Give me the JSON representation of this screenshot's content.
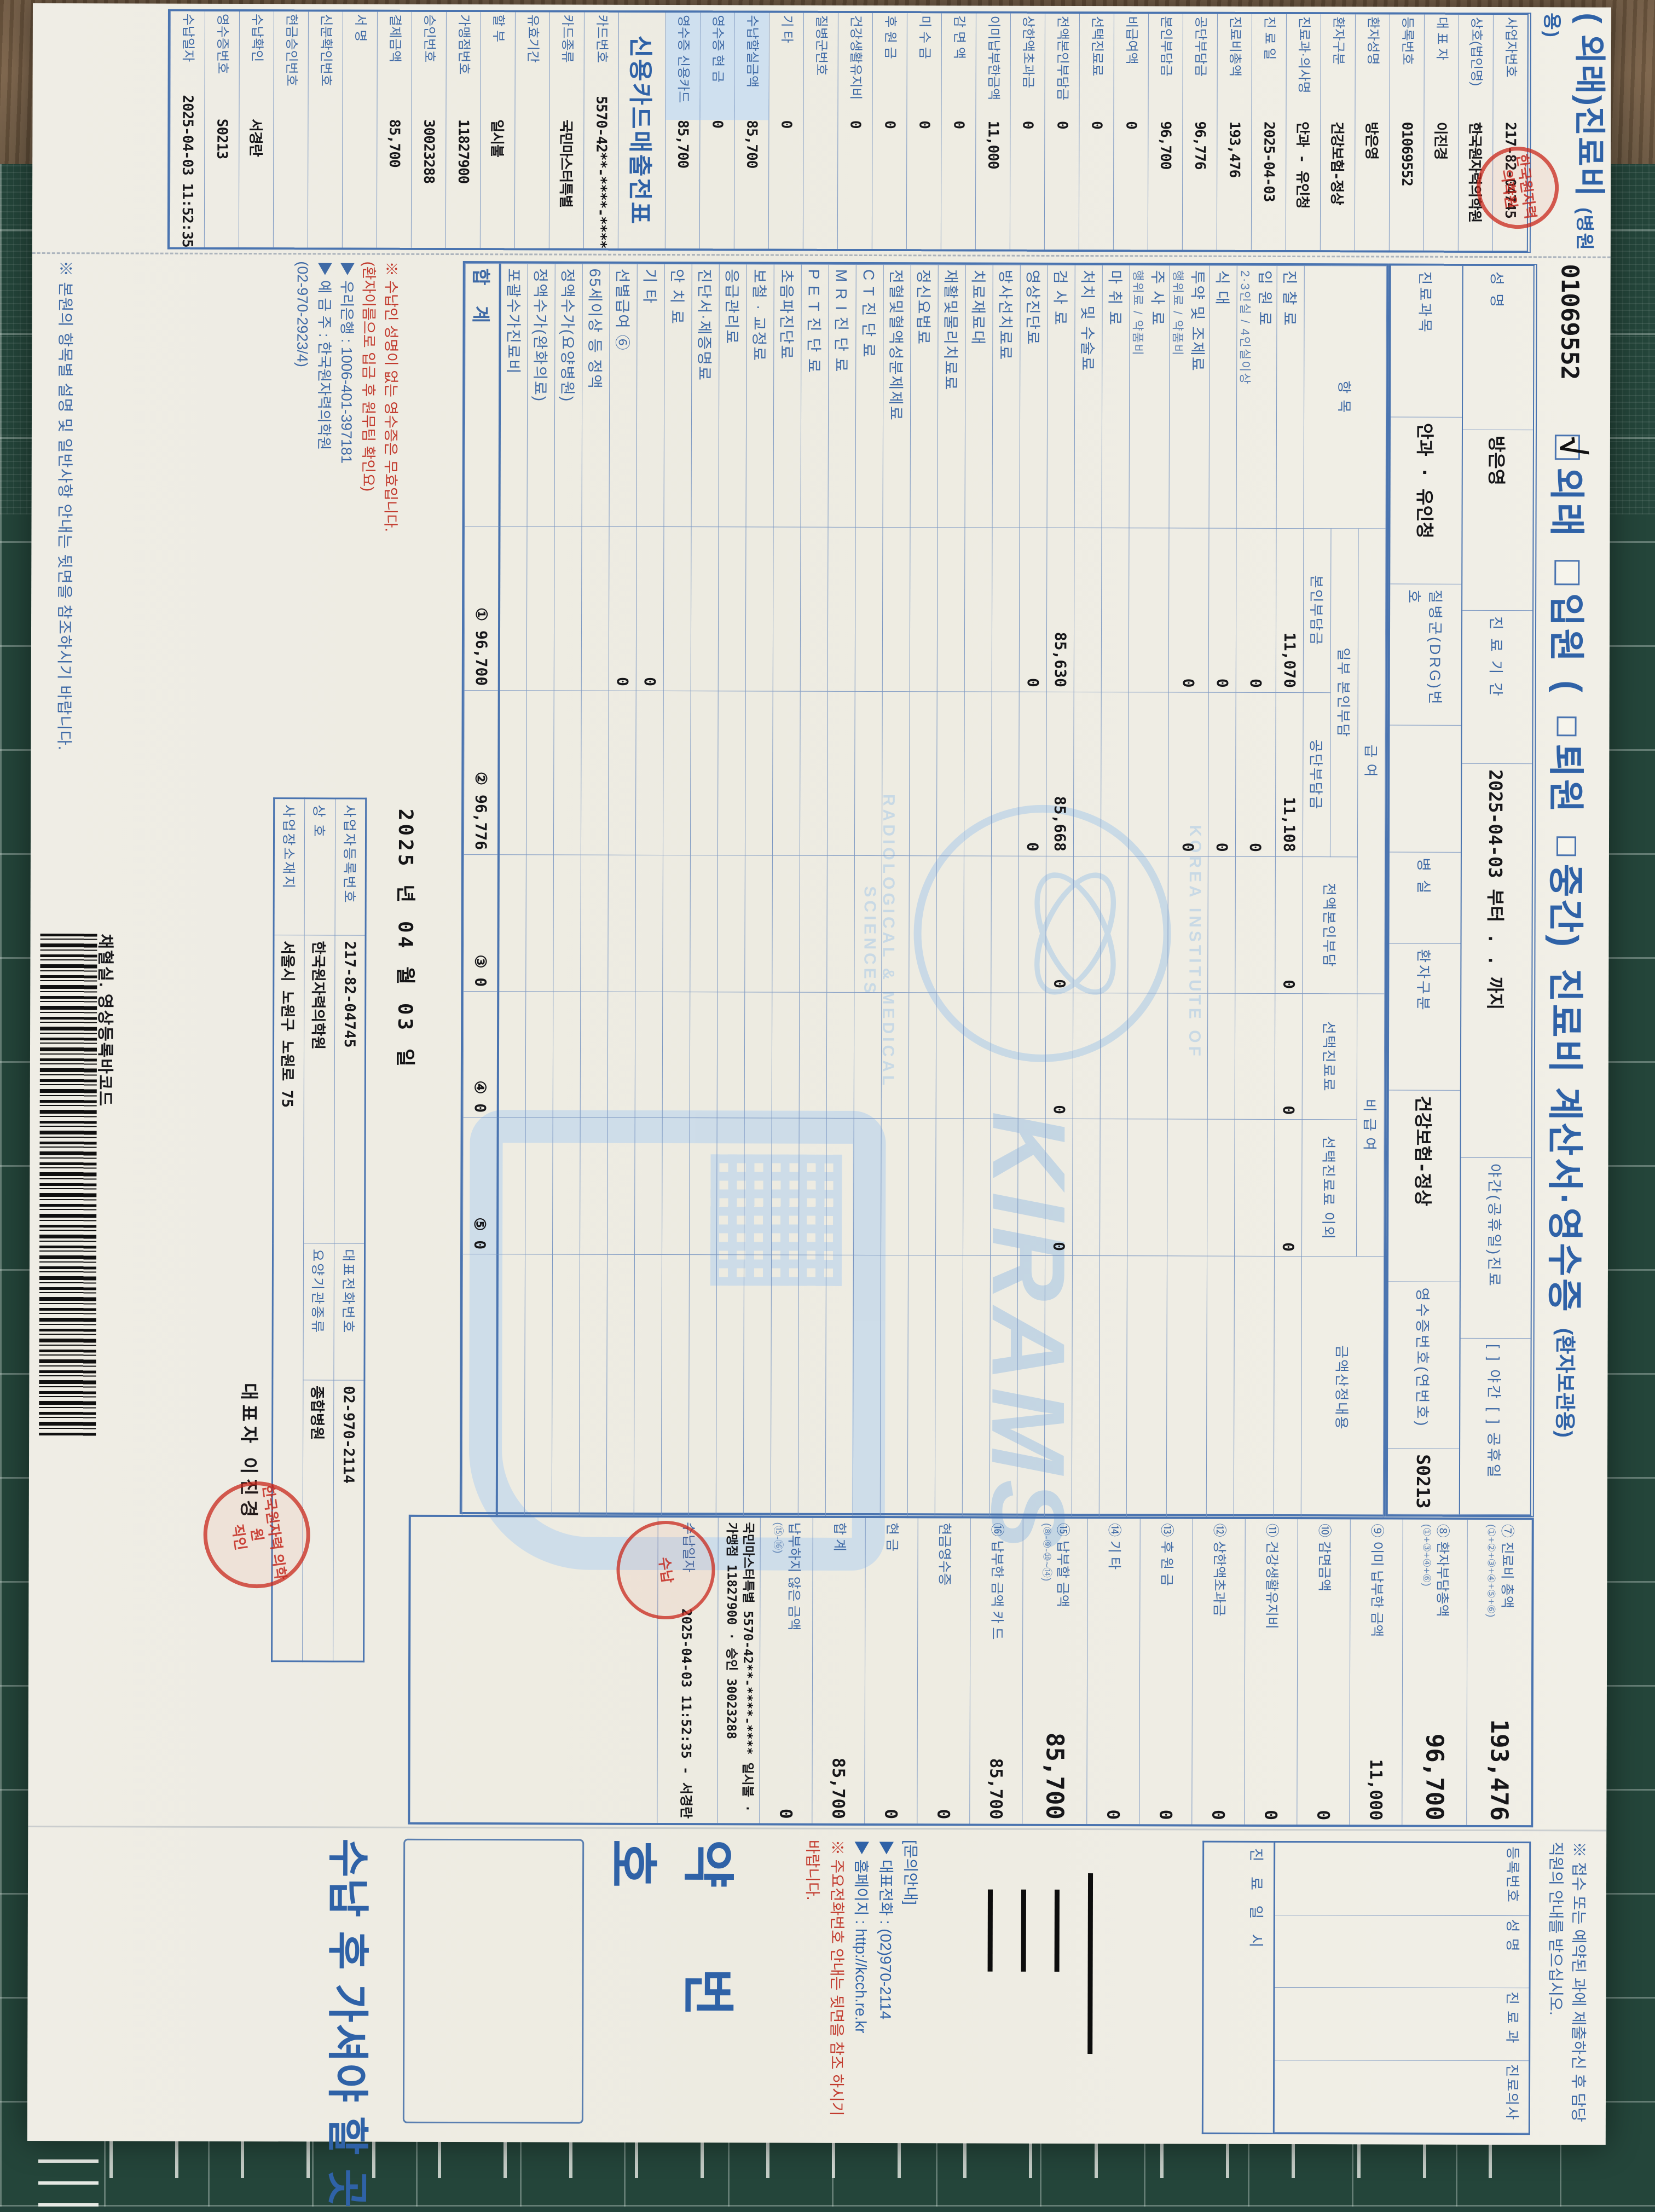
{
  "colors": {
    "form_blue": "#4a74b0",
    "title_blue": "#2f62a7",
    "value_black": "#17171a",
    "red": "#c23b2e",
    "shade": "#cfe0ef",
    "paper": "#f0eee6",
    "mat_green": "#24453a",
    "wood_brown": "#6f5840",
    "watermark_blue": "#c2d6e6"
  },
  "stub": {
    "title": "( 외래)진료비",
    "title_paren": "(병원용)",
    "rows": [
      {
        "label": "사업자번호",
        "value": "217-82-04745"
      },
      {
        "label": "상호(법인명)",
        "value": "한국원자력의학원"
      },
      {
        "label": "대 표 자",
        "value": "이진경"
      },
      {
        "label": "등록번호",
        "value": "01069552"
      },
      {
        "label": "환자성명",
        "value": "방은영"
      },
      {
        "label": "환자구분",
        "value": "건강보험-정상"
      },
      {
        "label": "진료과·의사명",
        "value": "안과 - 유인청"
      },
      {
        "label": "진 료 일",
        "value": "2025-04-03"
      },
      {
        "label": "진료비총액",
        "value": "193,476"
      },
      {
        "label": "공단부담금",
        "value": "96,776"
      },
      {
        "label": "본인부담금",
        "value": "96,700"
      },
      {
        "label": "비급여액",
        "value": "0"
      },
      {
        "label": "선택진료료",
        "value": "0"
      },
      {
        "label": "전액본인부담금",
        "value": "0"
      },
      {
        "label": "상한액초과금",
        "value": "0"
      },
      {
        "label": "이미납부한금액",
        "value": "11,000"
      },
      {
        "label": "감 면 액",
        "value": "0"
      },
      {
        "label": "미 수 금",
        "value": "0"
      },
      {
        "label": "후 원 금",
        "value": "0"
      },
      {
        "label": "건강생활유지비",
        "value": "0"
      },
      {
        "label": "질병군번호",
        "value": ""
      },
      {
        "label": "기 타",
        "value": "0"
      },
      {
        "label": "수납할실금액",
        "value": "85,700",
        "shaded": true
      },
      {
        "label": "영수증 현 금",
        "value": "0",
        "shaded": true
      },
      {
        "label": "영수증 신용카드",
        "value": "85,700",
        "shaded": true
      },
      {
        "header": "신용카드매출전표"
      },
      {
        "label": "카드번호",
        "value": "5570-42**-****-****"
      },
      {
        "label": "카드종류",
        "value": "국민마스터특별"
      },
      {
        "label": "유효기간",
        "value": ""
      },
      {
        "label": "할 부",
        "value": "일시불"
      },
      {
        "label": "가맹점번호",
        "value": "11827900"
      },
      {
        "label": "승인번호",
        "value": "30023288"
      },
      {
        "label": "결제금액",
        "value": "85,700"
      },
      {
        "label": "서 명",
        "value": ""
      },
      {
        "label": "신분확인번호",
        "value": ""
      },
      {
        "label": "현금승인번호",
        "value": ""
      },
      {
        "label": "수납확인",
        "value": "서경란"
      },
      {
        "label": "영수증번호",
        "value": "S0213"
      },
      {
        "label": "수납일자",
        "value": "2025-04-03 11:52:35"
      }
    ]
  },
  "header": {
    "registration_no": "01069552",
    "cb_outpatient": "외래",
    "cb_inpatient": "입원",
    "cb_paren": "(",
    "cb_discharge": "퇴원",
    "cb_interim": "중간)",
    "title": "진료비 계산서·영수증",
    "suffix": "(환자보관용)"
  },
  "patient": {
    "name_label": "성      명",
    "name": "방은영",
    "period_label": "진 료 기 간",
    "period": "2025-04-03  부터      .    .   까지",
    "night_label": "야간(공휴일)진료",
    "night_opts": "[  ] 야간   [  ] 공휴일",
    "dept_label": "진료과목",
    "dept": "안과 · 유인청",
    "drg_label": "질병군(DRG)번호",
    "drg": "",
    "room_label": "병   실",
    "room": "",
    "type_label": "환자구분",
    "type": "건강보험-정상",
    "rcpt_label": "영수증번호(연번호)",
    "rcpt": "S0213"
  },
  "items": {
    "col_item": "항  목",
    "col_pay": "급  여",
    "col_nopay": "비 급 여",
    "col_calc": "금액산정내용",
    "col_partial": "일부 본인부담",
    "col_self": "본인부담금",
    "col_corp": "공단부담금",
    "col_full": "전액본인부담",
    "col_select": "선택진료료",
    "col_select_etc": "선택진료료 이외",
    "rows": [
      {
        "name": "진 찰 료",
        "v": [
          "11,070",
          "11,108",
          "0",
          "0",
          "0"
        ]
      },
      {
        "name": "입 원 료",
        "sub": "2·3인실 / 4인실이상",
        "v": [
          "0",
          "0",
          "",
          "",
          ""
        ]
      },
      {
        "name": "식      대",
        "v": [
          "0",
          "0",
          "",
          "",
          ""
        ]
      },
      {
        "name": "투약 및 조제료",
        "sub": "행위료 / 약품비",
        "v": [
          "0",
          "0",
          "",
          "",
          ""
        ]
      },
      {
        "name": "주 사 료",
        "sub": "행위료 / 약품비",
        "v": [
          "",
          "",
          "",
          "",
          ""
        ]
      },
      {
        "name": "마 취 료",
        "v": [
          "",
          "",
          "",
          "",
          ""
        ]
      },
      {
        "name": "처치 및 수술료",
        "v": [
          "",
          "",
          "",
          "",
          ""
        ]
      },
      {
        "name": "검 사 료",
        "v": [
          "85,630",
          "85,668",
          "0",
          "0",
          "0"
        ]
      },
      {
        "name": "영상진단료",
        "v": [
          "0",
          "0",
          "",
          "",
          ""
        ]
      },
      {
        "name": "방사선치료료",
        "v": [
          "",
          "",
          "",
          "",
          ""
        ]
      },
      {
        "name": "치료재료대",
        "v": [
          "",
          "",
          "",
          "",
          ""
        ]
      },
      {
        "name": "재활및물리치료료",
        "v": [
          "",
          "",
          "",
          "",
          ""
        ]
      },
      {
        "name": "정신요법료",
        "v": [
          "",
          "",
          "",
          "",
          ""
        ]
      },
      {
        "name": "전혈및혈액성분제제료",
        "v": [
          "",
          "",
          "",
          "",
          ""
        ]
      },
      {
        "name": "C T 진 단 료",
        "v": [
          "",
          "",
          "",
          "",
          ""
        ]
      },
      {
        "name": "M R I 진 단 료",
        "v": [
          "",
          "",
          "",
          "",
          ""
        ]
      },
      {
        "name": "P E T 진 단 료",
        "v": [
          "",
          "",
          "",
          "",
          ""
        ]
      },
      {
        "name": "초음파진단료",
        "v": [
          "",
          "",
          "",
          "",
          ""
        ]
      },
      {
        "name": "보철 · 교정료",
        "v": [
          "",
          "",
          "",
          "",
          ""
        ]
      },
      {
        "name": "응급관리료",
        "v": [
          "",
          "",
          "",
          "",
          ""
        ]
      },
      {
        "name": "진단서·제증명료",
        "v": [
          "",
          "",
          "",
          "",
          ""
        ]
      },
      {
        "name": "안 치 료",
        "v": [
          "",
          "",
          "",
          "",
          ""
        ]
      },
      {
        "name": "기      타",
        "v": [
          "0",
          "",
          "",
          "",
          ""
        ]
      },
      {
        "name": "선별급여 ⑥",
        "v": [
          "0",
          "",
          "",
          "",
          ""
        ]
      },
      {
        "name": "65세이상 등 정액",
        "v": [
          "",
          "",
          "",
          "",
          ""
        ]
      },
      {
        "name": "정액수가(요양병원)",
        "v": [
          "",
          "",
          "",
          "",
          ""
        ]
      },
      {
        "name": "정액수가(완화의료)",
        "v": [
          "",
          "",
          "",
          "",
          ""
        ]
      },
      {
        "name": "포괄수가진료비",
        "v": [
          "",
          "",
          "",
          "",
          ""
        ]
      },
      {
        "name": "합  계",
        "total": true,
        "v": [
          "① 96,700",
          "② 96,776",
          "③ 0",
          "④ 0",
          "⑤ 0"
        ]
      }
    ]
  },
  "summary": {
    "rows": [
      {
        "label": "⑦ 진료비 총액",
        "formula": "(①+②+③+④+⑤+⑥)",
        "value": "193,476",
        "big": true
      },
      {
        "label": "⑧ 환자부담총액",
        "formula": "(①+③+④+⑥)",
        "value": "96,700",
        "big": true
      },
      {
        "label": "⑨ 이미 납부한 금액",
        "formula": "",
        "value": "11,000"
      },
      {
        "label": "⑩ 감면금액",
        "formula": "",
        "value": "0"
      },
      {
        "label": "⑪ 건강생활유지비",
        "formula": "",
        "value": "0"
      },
      {
        "label": "⑫ 상한액초과금",
        "formula": "",
        "value": "0"
      },
      {
        "label": "⑬ 후 원 금",
        "formula": "",
        "value": "0"
      },
      {
        "label": "⑭ 기    타",
        "formula": "",
        "value": "0"
      },
      {
        "label": "⑮ 납부할 금액",
        "formula": "(⑧-⑨-⑩~⑭)",
        "value": "85,700",
        "big": true
      },
      {
        "label": "⑯ 납부한 금액   카 드",
        "formula": "",
        "value": "85,700"
      },
      {
        "label": "현금영수증",
        "formula": "",
        "value": "0"
      },
      {
        "label": "현    금",
        "formula": "",
        "value": "0"
      },
      {
        "label": "합    계",
        "formula": "",
        "value": "85,700"
      },
      {
        "label": "납부하지 않은 금액",
        "formula": "(⑮-⑯)",
        "value": "0"
      }
    ],
    "card_info": "국민마스터특별 5570-42**-****-**** 일시불 · 가맹점 11827900 · 승인 30023288",
    "paid_at_label": "수납일자",
    "paid_at": "2025-04-03 11:52:35 - 서경란"
  },
  "bottom": {
    "bank_note1": "※ 수납인 성명이 없는 영수증은 무효입니다.",
    "bank_note2": "(환자이름으로 입금 후 원무팀 확인요)",
    "bank_line1": "▶ 우리은행 : 1006-401-397181",
    "bank_line2": "▶ 예 금 주 : 한국원자력의학원",
    "bank_line3": "(02-970-2923/4)",
    "date_line": "2025 년   04 월   03 일",
    "rep_line": "대표자  이진경",
    "info_rows": [
      [
        "사업자등록번호",
        "217-82-04745",
        "대표전화번호",
        "02-970-2114"
      ],
      [
        "상      호",
        "한국원자력의학원",
        "요양기관종류",
        "종합병원"
      ],
      [
        "사업장소재지",
        "서울시 노원구 노원로 75",
        "",
        ""
      ]
    ],
    "footer_note": "※ 본원의 항목별 설명 및 일반사항 안내는 뒷면을 참조하시기 바랍니다.",
    "barcode_label": "채혈실. 영상등록바코드"
  },
  "panel": {
    "notice": "※ 접수 또는 예약된 과에 제출하신 후 담당직원의 안내를 받으십시오.",
    "reg_cells": [
      "등록번호",
      "성  명",
      "진 료 과",
      "진료의사"
    ],
    "day_label": "진 료 일 시",
    "ask_title": "[문의안내]",
    "ask_line1": "▶ 대표전화 : (02)970-2114",
    "ask_line2": "▶ 홈페이지 : http://kcch.re.kr",
    "ask_red": "※ 주요전화번호 안내는 뒷면을 참조 하시기 바랍니다.",
    "drug_no": "약 번 호",
    "go_where": "수납 후 가셔야 할 곳"
  },
  "watermark": {
    "arc_top": "KOREA INSTITUTE OF",
    "arc_bottom": "RADIOLOGICAL & MEDICAL SCIENCES",
    "brand": "KIRAMS"
  },
  "stamps": {
    "hospital": "한국원자력 의학원",
    "seal": "직인",
    "receipt": "수납"
  }
}
